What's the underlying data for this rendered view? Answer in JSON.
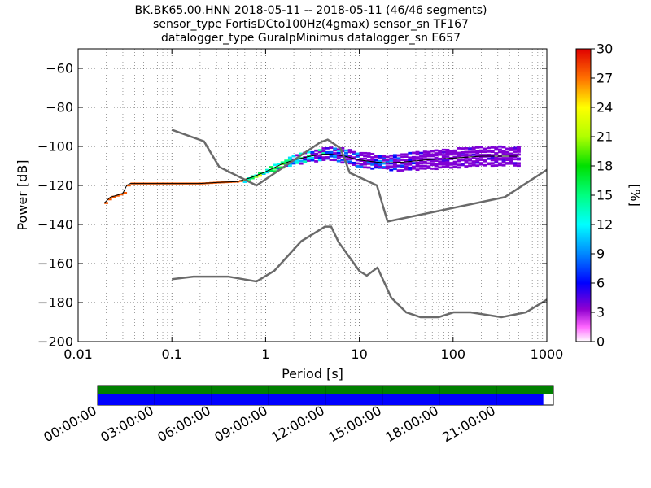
{
  "chart_data": [
    {
      "type": "heatmap",
      "title_lines": [
        "BK.BK65.00.HNN   2018-05-11 -- 2018-05-11  (46/46 segments)",
        "sensor_type FortisDCto100Hz(4gmax) sensor_sn TF167",
        "datalogger_type GuralpMinimus datalogger_sn E657"
      ],
      "xlabel": "Period [s]",
      "ylabel": "Power [dB]",
      "x_scale": "log",
      "xlim": [
        0.01,
        1000
      ],
      "ylim": [
        -200,
        -50
      ],
      "x_ticks": [
        0.01,
        0.1,
        1,
        10,
        100,
        1000
      ],
      "x_tick_labels": [
        "0.01",
        "0.1",
        "1",
        "10",
        "100",
        "1000"
      ],
      "y_ticks": [
        -200,
        -180,
        -160,
        -140,
        -120,
        -100,
        -80,
        -60
      ],
      "y_tick_labels": [
        "−200",
        "−180",
        "−160",
        "−140",
        "−120",
        "−100",
        "−80",
        "−60"
      ],
      "grid": true,
      "colorbar": {
        "label": "[%]",
        "range": [
          0,
          30
        ],
        "ticks": [
          0,
          3,
          6,
          9,
          12,
          15,
          18,
          21,
          24,
          27,
          30
        ],
        "tick_labels": [
          "0",
          "3",
          "6",
          "9",
          "12",
          "15",
          "18",
          "21",
          "24",
          "27",
          "30"
        ]
      },
      "reference_curves": [
        {
          "role": "upper noise model",
          "x": [
            0.1,
            0.22,
            0.32,
            0.8,
            3.8,
            4.6,
            6.3,
            7.9,
            15.4,
            20,
            354.8,
            1000
          ],
          "y": [
            -91.5,
            -97.4,
            -110.5,
            -120,
            -98,
            -96.5,
            -101,
            -113.5,
            -120,
            -138.5,
            -126,
            -112
          ]
        },
        {
          "role": "lower noise model",
          "x": [
            0.1,
            0.17,
            0.4,
            0.8,
            1.24,
            2.4,
            4.3,
            5,
            6,
            10,
            12,
            15.6,
            21.9,
            31.6,
            45,
            70,
            101,
            154,
            328,
            600,
            1000
          ],
          "y": [
            -168,
            -166.7,
            -166.7,
            -169.2,
            -163.7,
            -148.6,
            -141.1,
            -141.1,
            -149,
            -163.8,
            -166.2,
            -162.1,
            -177.5,
            -185,
            -187.5,
            -187.5,
            -185,
            -185,
            -187.5,
            -185,
            -178.5
          ]
        }
      ],
      "density": {
        "period": [
          0.019,
          0.022,
          0.026,
          0.03,
          0.033,
          0.036,
          0.05,
          0.1,
          0.2,
          0.3,
          0.5,
          0.7,
          1,
          1.5,
          2,
          3,
          4,
          5,
          7,
          10,
          15,
          20,
          30,
          50,
          100,
          200,
          500
        ],
        "mode_db": [
          -129,
          -126,
          -125,
          -124,
          -120,
          -119,
          -119,
          -119,
          -119,
          -118.5,
          -118,
          -116,
          -113,
          -109,
          -107,
          -105,
          -104,
          -104,
          -105,
          -107,
          -108,
          -108.5,
          -108,
          -107,
          -106,
          -105,
          -105
        ],
        "spread_db": [
          0,
          0,
          0,
          0,
          0,
          0,
          0,
          0,
          0,
          0,
          0.5,
          1,
          1.5,
          2,
          2.5,
          3,
          3,
          3.5,
          4,
          4,
          4,
          4,
          4.5,
          5,
          5,
          5,
          5
        ]
      }
    },
    {
      "type": "timeline",
      "time_labels": [
        "00:00:00",
        "03:00:00",
        "06:00:00",
        "09:00:00",
        "12:00:00",
        "15:00:00",
        "18:00:00",
        "21:00:00"
      ],
      "data_coverage": [
        0,
        1
      ],
      "psd_coverage": [
        0,
        0.978
      ]
    }
  ],
  "colors": {
    "reference_curve": "#6a6a6a",
    "mode_line": "#000000",
    "data_coverage": "#008000",
    "psd_coverage": "#0000ff",
    "grid": "#000000"
  }
}
